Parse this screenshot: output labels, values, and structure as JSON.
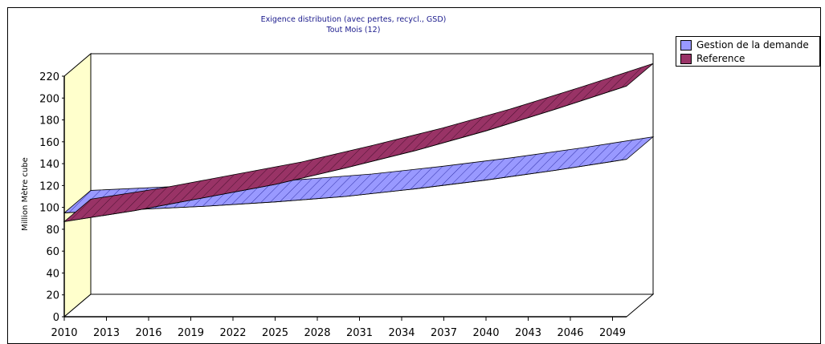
{
  "chart_data": {
    "type": "area",
    "title": "Exigence distribution (avec pertes, recycl., GSD)",
    "subtitle": "Tout Mois (12)",
    "xlabel": "",
    "ylabel": "Million Mètre cube",
    "x_tick_labels": [
      "2010",
      "2013",
      "2016",
      "2019",
      "2022",
      "2025",
      "2028",
      "2031",
      "2034",
      "2037",
      "2040",
      "2043",
      "2046",
      "2049"
    ],
    "y_tick_labels": [
      "0",
      "20",
      "40",
      "60",
      "80",
      "100",
      "120",
      "140",
      "160",
      "180",
      "200",
      "220"
    ],
    "ylim": [
      0,
      220
    ],
    "xlim": [
      2010,
      2050
    ],
    "grid": false,
    "legend_position": "right",
    "three_d": true,
    "series": [
      {
        "name": "Gestion de la demande",
        "color": "#9999ff",
        "x": [
          2010,
          2015,
          2020,
          2025,
          2030,
          2035,
          2040,
          2045,
          2050
        ],
        "values": [
          95,
          98,
          101,
          105,
          110,
          117,
          125,
          134,
          144
        ]
      },
      {
        "name": "Reference",
        "color": "#993366",
        "x": [
          2010,
          2015,
          2020,
          2025,
          2030,
          2035,
          2040,
          2045,
          2050
        ],
        "values": [
          87,
          97,
          109,
          121,
          136,
          152,
          170,
          190,
          211
        ]
      }
    ]
  }
}
